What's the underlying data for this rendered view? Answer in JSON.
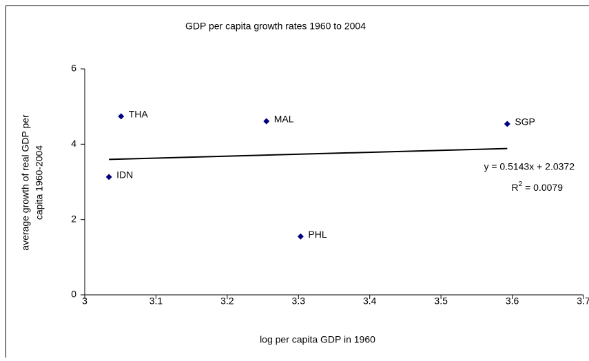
{
  "chart_data": {
    "type": "scatter",
    "title": "GDP per capita growth rates 1960 to 2004",
    "x_label": "log per capita GDP in  1960",
    "y_label": [
      "average growth of real GDP per",
      "capita 1960-2004"
    ],
    "categories": [
      "IDN",
      "THA",
      "MAL",
      "PHL",
      "SGP"
    ],
    "x": [
      3.034,
      3.051,
      3.255,
      3.303,
      3.593
    ],
    "values": [
      3.13,
      4.74,
      4.61,
      1.55,
      4.54
    ],
    "color": "#000080",
    "xlim": [
      3,
      3.7
    ],
    "xticks": [
      3,
      3.1,
      3.2,
      3.3,
      3.4,
      3.5,
      3.6,
      3.7
    ],
    "ylim": [
      0,
      6
    ],
    "yticks": [
      0,
      2,
      4,
      6
    ],
    "trendline": {
      "equation": "y = 0.5143x + 2.0372",
      "slope": 0.5143,
      "intercept": 2.0372,
      "r_squared_text": [
        "R",
        "2",
        " = 0.0079"
      ]
    }
  }
}
